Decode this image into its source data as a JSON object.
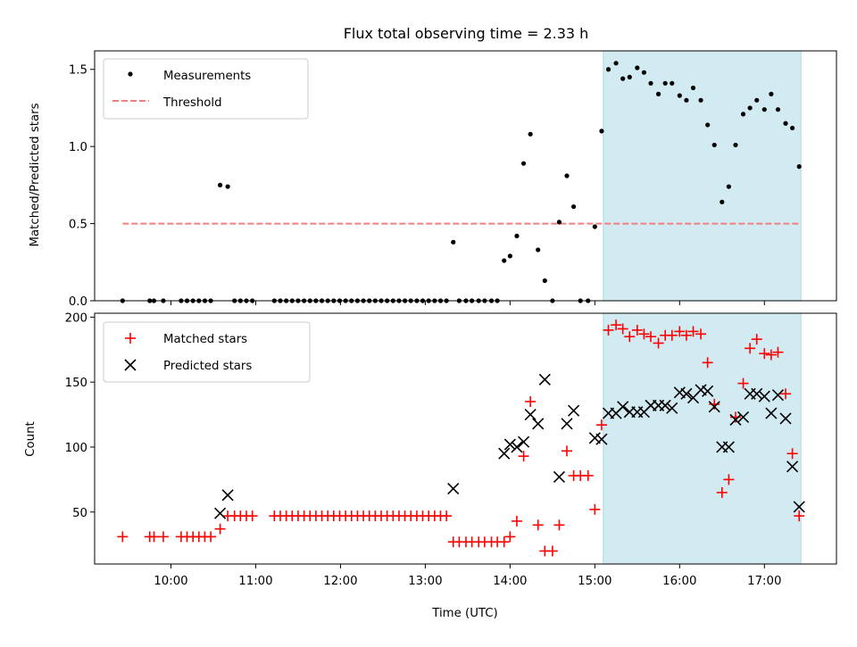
{
  "chart_data": [
    {
      "type": "scatter",
      "title": "Flux total observing time = 2.33 h",
      "xlabel": "",
      "ylabel": "Matched/Predicted stars",
      "xlim_hours": [
        9.1,
        17.85
      ],
      "ylim": [
        0,
        1.62
      ],
      "yticks": [
        0.0,
        0.5,
        1.0,
        1.5
      ],
      "ytick_labels": [
        "0.0",
        "0.5",
        "1.0",
        "1.5"
      ],
      "grid": false,
      "legend_position": "top-left",
      "shaded_region_hours": [
        15.1,
        17.43
      ],
      "colors": {
        "measurements": "#000000",
        "threshold": "#f08080",
        "shade": "#add8e6"
      },
      "series": [
        {
          "name": "Measurements",
          "kind": "scatter",
          "x_hours": [
            9.43,
            9.75,
            9.8,
            9.91,
            10.12,
            10.19,
            10.26,
            10.33,
            10.4,
            10.47,
            10.58,
            10.67,
            10.75,
            10.82,
            10.89,
            10.96,
            11.22,
            11.29,
            11.36,
            11.43,
            11.5,
            11.57,
            11.64,
            11.71,
            11.78,
            11.85,
            11.92,
            11.99,
            12.06,
            12.13,
            12.2,
            12.27,
            12.34,
            12.41,
            12.48,
            12.55,
            12.62,
            12.69,
            12.76,
            12.83,
            12.9,
            12.97,
            13.04,
            13.11,
            13.18,
            13.25,
            13.33,
            13.4,
            13.48,
            13.55,
            13.63,
            13.7,
            13.78,
            13.85,
            13.93,
            14.0,
            14.08,
            14.16,
            14.24,
            14.33,
            14.41,
            14.5,
            14.58,
            14.67,
            14.75,
            14.83,
            14.92,
            15.0,
            15.08,
            15.16,
            15.25,
            15.33,
            15.41,
            15.5,
            15.58,
            15.66,
            15.75,
            15.83,
            15.91,
            16.0,
            16.08,
            16.16,
            16.25,
            16.33,
            16.41,
            16.5,
            16.58,
            16.66,
            16.75,
            16.83,
            16.91,
            17.0,
            17.08,
            17.16,
            17.25,
            17.33,
            17.41
          ],
          "y": [
            0.0,
            0.0,
            0.0,
            0.0,
            0.0,
            0.0,
            0.0,
            0.0,
            0.0,
            0.0,
            0.75,
            0.74,
            0.0,
            0.0,
            0.0,
            0.0,
            0.0,
            0.0,
            0.0,
            0.0,
            0.0,
            0.0,
            0.0,
            0.0,
            0.0,
            0.0,
            0.0,
            0.0,
            0.0,
            0.0,
            0.0,
            0.0,
            0.0,
            0.0,
            0.0,
            0.0,
            0.0,
            0.0,
            0.0,
            0.0,
            0.0,
            0.0,
            0.0,
            0.0,
            0.0,
            0.0,
            0.38,
            0.0,
            0.0,
            0.0,
            0.0,
            0.0,
            0.0,
            0.0,
            0.26,
            0.29,
            0.42,
            0.89,
            1.08,
            0.33,
            0.13,
            0.0,
            0.51,
            0.81,
            0.61,
            0.0,
            0.0,
            0.48,
            1.1,
            1.5,
            1.54,
            1.44,
            1.45,
            1.51,
            1.48,
            1.41,
            1.34,
            1.41,
            1.41,
            1.33,
            1.3,
            1.38,
            1.3,
            1.14,
            1.01,
            0.64,
            0.74,
            1.01,
            1.21,
            1.25,
            1.3,
            1.24,
            1.34,
            1.24,
            1.15,
            1.12,
            0.87
          ]
        },
        {
          "name": "Threshold",
          "kind": "hline",
          "value": 0.5,
          "x_range_hours": [
            9.43,
            17.43
          ]
        }
      ]
    },
    {
      "type": "scatter",
      "title": "",
      "xlabel": "Time (UTC)",
      "ylabel": "Count",
      "xlim_hours": [
        9.1,
        17.85
      ],
      "xticks_hours": [
        10,
        11,
        12,
        13,
        14,
        15,
        16,
        17
      ],
      "xtick_labels": [
        "10:00",
        "11:00",
        "12:00",
        "13:00",
        "14:00",
        "15:00",
        "16:00",
        "17:00"
      ],
      "ylim": [
        10,
        203
      ],
      "yticks": [
        50,
        100,
        150,
        200
      ],
      "ytick_labels": [
        "50",
        "100",
        "150",
        "200"
      ],
      "grid": false,
      "legend_position": "top-left",
      "shaded_region_hours": [
        15.1,
        17.43
      ],
      "colors": {
        "matched": "#ff0000",
        "predicted": "#000000",
        "shade": "#add8e6"
      },
      "series": [
        {
          "name": "Matched stars",
          "marker": "+",
          "x_hours": [
            9.43,
            9.75,
            9.8,
            9.91,
            10.12,
            10.19,
            10.26,
            10.33,
            10.4,
            10.47,
            10.58,
            10.67,
            10.75,
            10.82,
            10.89,
            10.96,
            11.22,
            11.29,
            11.36,
            11.43,
            11.5,
            11.57,
            11.64,
            11.71,
            11.78,
            11.85,
            11.92,
            11.99,
            12.06,
            12.13,
            12.2,
            12.27,
            12.34,
            12.41,
            12.48,
            12.55,
            12.62,
            12.69,
            12.76,
            12.83,
            12.9,
            12.97,
            13.04,
            13.11,
            13.18,
            13.25,
            13.33,
            13.4,
            13.48,
            13.55,
            13.63,
            13.7,
            13.78,
            13.85,
            13.93,
            14.0,
            14.08,
            14.16,
            14.24,
            14.33,
            14.41,
            14.5,
            14.58,
            14.67,
            14.75,
            14.83,
            14.92,
            15.0,
            15.08,
            15.16,
            15.25,
            15.33,
            15.41,
            15.5,
            15.58,
            15.66,
            15.75,
            15.83,
            15.91,
            16.0,
            16.08,
            16.16,
            16.25,
            16.33,
            16.41,
            16.5,
            16.58,
            16.66,
            16.75,
            16.83,
            16.91,
            17.0,
            17.08,
            17.16,
            17.25,
            17.33,
            17.41
          ],
          "y": [
            31,
            31,
            31,
            31,
            31,
            31,
            31,
            31,
            31,
            31,
            37,
            47,
            47,
            47,
            47,
            47,
            47,
            47,
            47,
            47,
            47,
            47,
            47,
            47,
            47,
            47,
            47,
            47,
            47,
            47,
            47,
            47,
            47,
            47,
            47,
            47,
            47,
            47,
            47,
            47,
            47,
            47,
            47,
            47,
            47,
            47,
            27,
            27,
            27,
            27,
            27,
            27,
            27,
            27,
            27,
            31,
            43,
            93,
            135,
            40,
            20,
            20,
            40,
            97,
            78,
            78,
            78,
            52,
            117,
            190,
            194,
            191,
            185,
            190,
            187,
            185,
            180,
            186,
            186,
            189,
            186,
            189,
            187,
            165,
            133,
            65,
            75,
            123,
            149,
            176,
            183,
            172,
            171,
            173,
            141,
            95,
            47
          ]
        },
        {
          "name": "Predicted stars",
          "marker": "x",
          "x_hours": [
            10.58,
            10.67,
            13.33,
            13.93,
            14.0,
            14.08,
            14.16,
            14.24,
            14.33,
            14.41,
            14.58,
            14.67,
            14.75,
            15.0,
            15.08,
            15.16,
            15.25,
            15.33,
            15.41,
            15.5,
            15.58,
            15.66,
            15.75,
            15.83,
            15.91,
            16.0,
            16.08,
            16.16,
            16.25,
            16.33,
            16.41,
            16.5,
            16.58,
            16.66,
            16.75,
            16.83,
            16.91,
            17.0,
            17.08,
            17.16,
            17.25,
            17.33,
            17.41
          ],
          "y": [
            49,
            63,
            68,
            95,
            102,
            100,
            104,
            125,
            118,
            152,
            77,
            118,
            128,
            107,
            106,
            126,
            126,
            131,
            127,
            127,
            127,
            132,
            132,
            132,
            130,
            142,
            141,
            138,
            144,
            143,
            131,
            100,
            100,
            121,
            123,
            141,
            141,
            139,
            126,
            140,
            122,
            85,
            54
          ]
        }
      ]
    }
  ]
}
